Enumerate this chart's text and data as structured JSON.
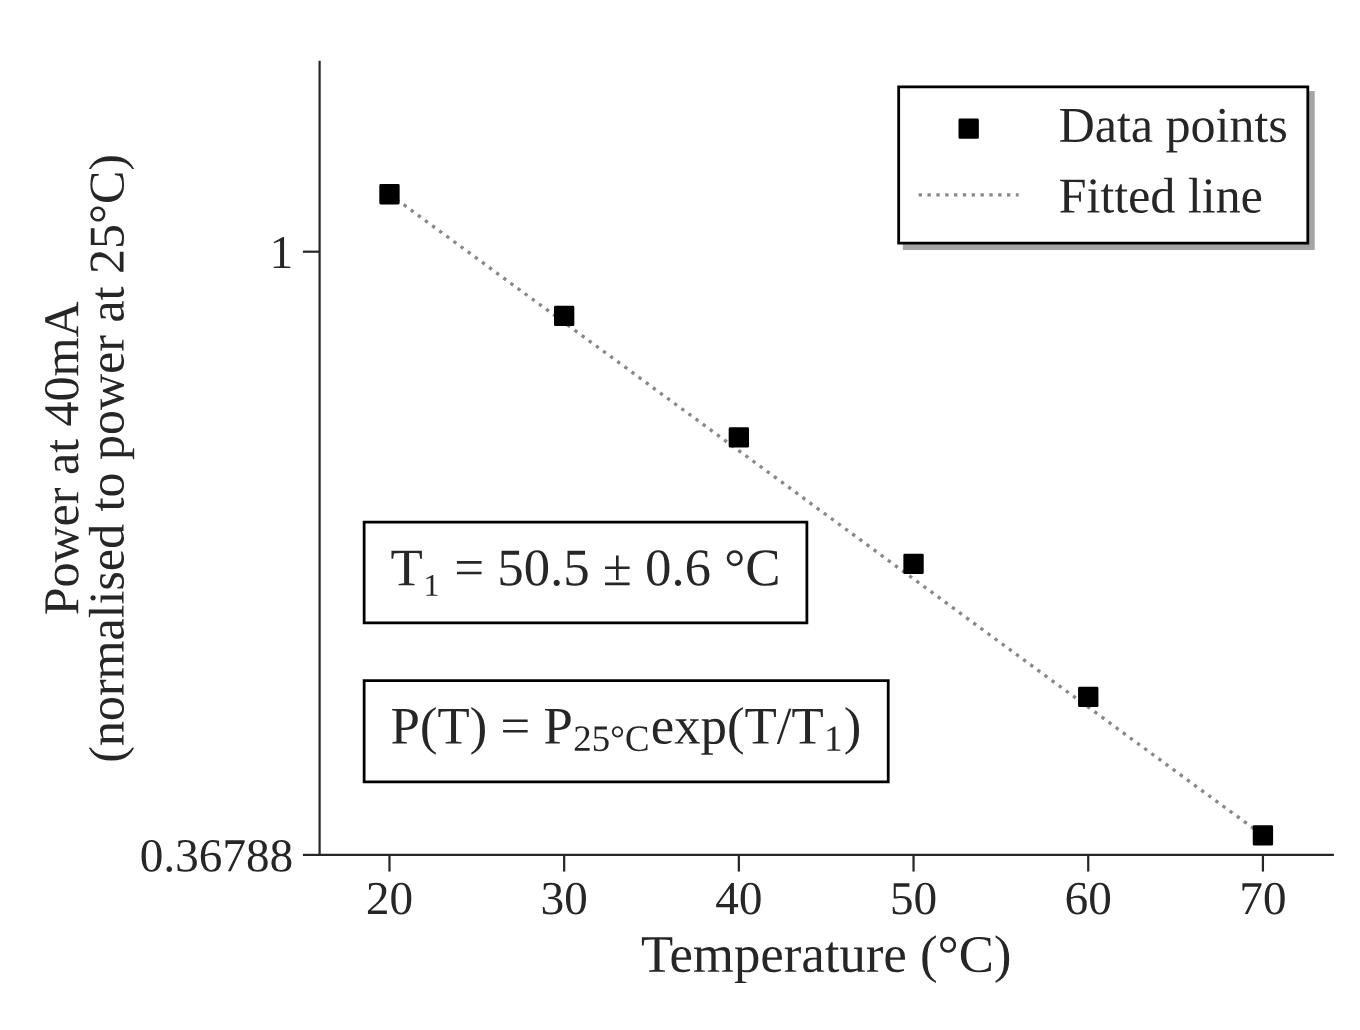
{
  "chart_data": {
    "type": "scatter",
    "xlabel": "Temperature (°C)",
    "ylabel": "Power at 40mA\n(normalised to power at 25°C)",
    "log": "y",
    "xlim": [
      16,
      74
    ],
    "ylim": [
      0.36788,
      1.37
    ],
    "xticks": [
      20,
      30,
      40,
      50,
      60,
      70
    ],
    "yticks": [
      0.36788,
      1
    ],
    "grid": false,
    "legend": "top right",
    "series": [
      {
        "name": "Data points",
        "marker": "square",
        "color": "#000000",
        "x": [
          20,
          30,
          40,
          50,
          60,
          70
        ],
        "values": [
          1.1,
          0.899,
          0.735,
          0.596,
          0.478,
          0.38
        ]
      },
      {
        "name": "Fitted line",
        "type": "line",
        "line_style": "dotted",
        "marker": "none",
        "color": "#888888",
        "x": [
          20,
          70
        ],
        "values": [
          1.1,
          0.38
        ]
      }
    ],
    "annotations": [
      "T₁ = 50.5 ± 0.6 °C",
      "P(T) = P$_{25°C}$exp(T/T$_{1}$)"
    ]
  }
}
